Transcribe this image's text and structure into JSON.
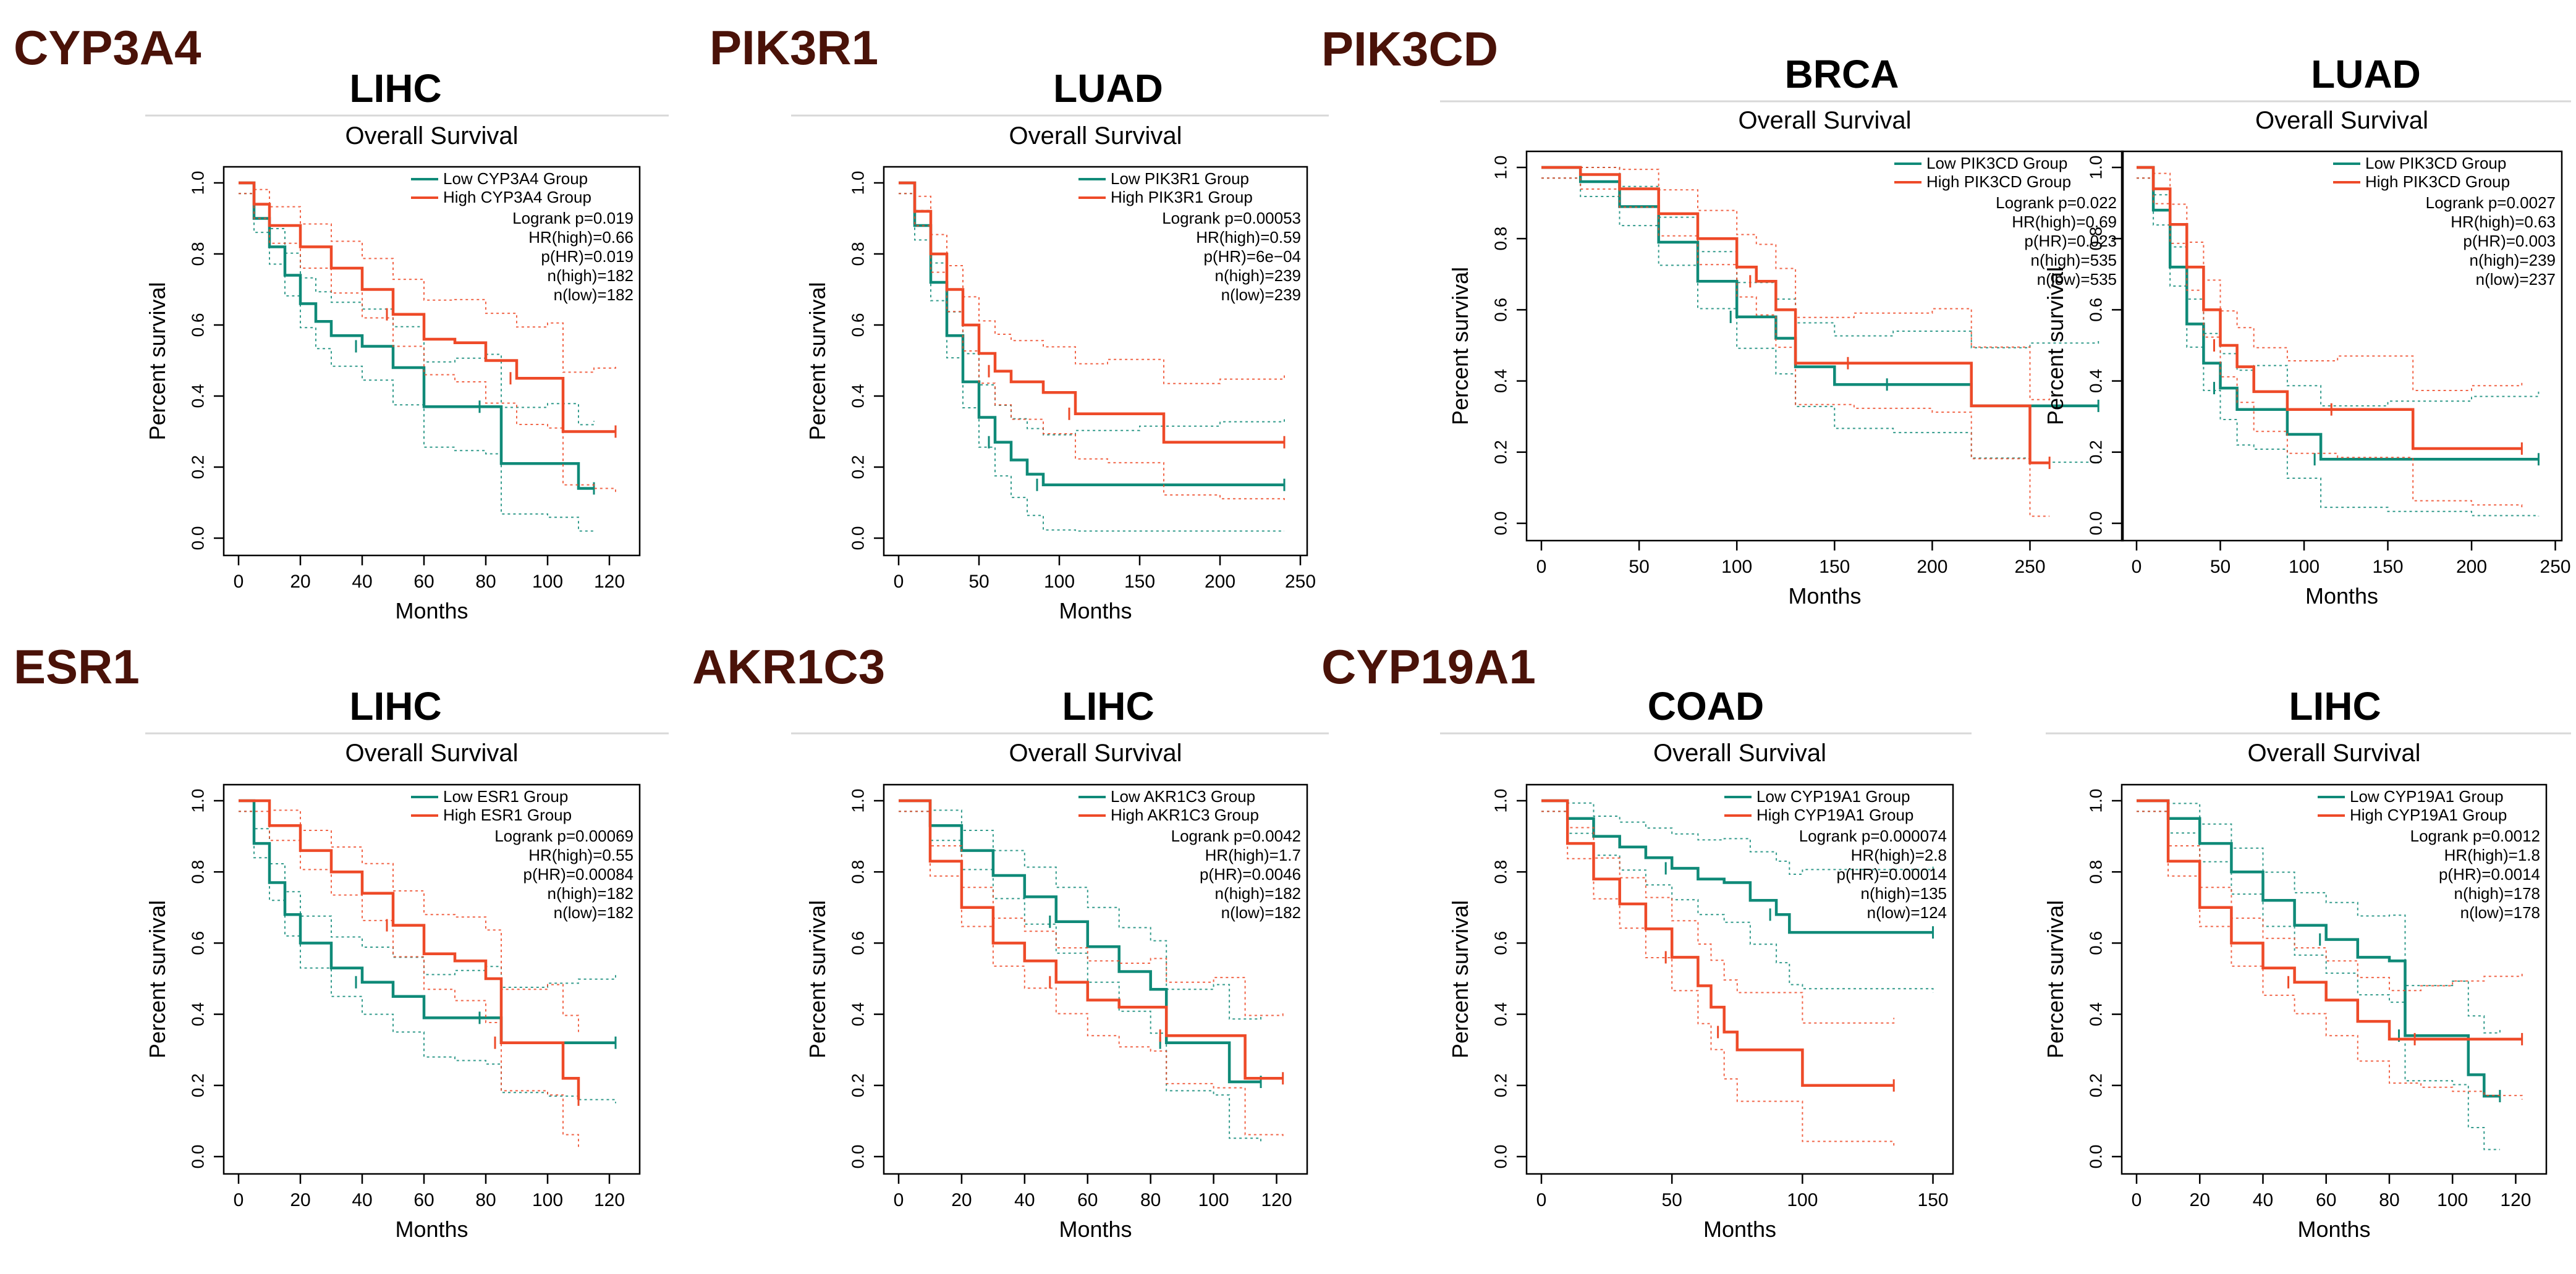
{
  "colors": {
    "low": "#0f8a78",
    "high": "#ee4a28",
    "gene_label": "#4a1208"
  },
  "gene_labels": [
    "CYP3A4",
    "PIK3R1",
    "PIK3CD",
    "ESR1",
    "AKR1C3",
    "CYP19A1"
  ],
  "chart_data": [
    {
      "type": "line",
      "gene": "CYP3A4",
      "cancer": "LIHC",
      "title": "Overall Survival",
      "xlabel": "Months",
      "ylabel": "Percent survival",
      "xlim": [
        0,
        125
      ],
      "ylim": [
        0,
        1.0
      ],
      "xticks": [
        "0",
        "20",
        "40",
        "60",
        "80",
        "100",
        "120"
      ],
      "yticks": [
        "0.0",
        "0.2",
        "0.4",
        "0.6",
        "0.8",
        "1.0"
      ],
      "legend": [
        "Low CYP3A4 Group",
        "High CYP3A4 Group"
      ],
      "stats": [
        "Logrank p=0.019",
        "HR(high)=0.66",
        "p(HR)=0.019",
        "n(high)=182",
        "n(low)=182"
      ],
      "series": [
        {
          "name": "Low CYP3A4 Group",
          "x": [
            0,
            5,
            10,
            15,
            20,
            25,
            30,
            40,
            50,
            60,
            70,
            80,
            85,
            100,
            110,
            115
          ],
          "y": [
            1,
            0.9,
            0.82,
            0.74,
            0.66,
            0.61,
            0.57,
            0.54,
            0.48,
            0.37,
            0.37,
            0.37,
            0.21,
            0.21,
            0.14,
            0.14
          ]
        },
        {
          "name": "High CYP3A4 Group",
          "x": [
            0,
            5,
            10,
            20,
            30,
            40,
            50,
            60,
            70,
            80,
            90,
            100,
            105,
            115,
            122
          ],
          "y": [
            1,
            0.94,
            0.88,
            0.82,
            0.76,
            0.7,
            0.63,
            0.56,
            0.55,
            0.5,
            0.45,
            0.45,
            0.3,
            0.3,
            0.3
          ]
        }
      ]
    },
    {
      "type": "line",
      "gene": "PIK3R1",
      "cancer": "LUAD",
      "title": "Overall Survival",
      "xlabel": "Months",
      "ylabel": "Percent survival",
      "xlim": [
        0,
        245
      ],
      "ylim": [
        0,
        1.0
      ],
      "xticks": [
        "0",
        "50",
        "100",
        "150",
        "200",
        "250"
      ],
      "yticks": [
        "0.0",
        "0.2",
        "0.4",
        "0.6",
        "0.8",
        "1.0"
      ],
      "legend": [
        "Low PIK3R1 Group",
        "High PIK3R1 Group"
      ],
      "stats": [
        "Logrank p=0.00053",
        "HR(high)=0.59",
        "p(HR)=6e−04",
        "n(high)=239",
        "n(low)=239"
      ],
      "series": [
        {
          "name": "Low PIK3R1 Group",
          "x": [
            0,
            10,
            20,
            30,
            40,
            50,
            60,
            70,
            80,
            90,
            110,
            150,
            200,
            240
          ],
          "y": [
            1,
            0.88,
            0.72,
            0.57,
            0.44,
            0.34,
            0.27,
            0.22,
            0.18,
            0.15,
            0.15,
            0.15,
            0.15,
            0.15
          ]
        },
        {
          "name": "High PIK3R1 Group",
          "x": [
            0,
            10,
            20,
            30,
            40,
            50,
            60,
            70,
            90,
            110,
            130,
            165,
            200,
            240
          ],
          "y": [
            1,
            0.92,
            0.8,
            0.7,
            0.6,
            0.52,
            0.47,
            0.44,
            0.41,
            0.35,
            0.35,
            0.27,
            0.27,
            0.27
          ]
        }
      ]
    },
    {
      "type": "line",
      "gene": "PIK3CD",
      "cancer": "BRCA",
      "title": "Overall Survival",
      "xlabel": "Months",
      "ylabel": "Percent survival",
      "xlim": [
        0,
        290
      ],
      "ylim": [
        0,
        1.0
      ],
      "xticks": [
        "0",
        "50",
        "100",
        "150",
        "200",
        "250"
      ],
      "yticks": [
        "0.0",
        "0.2",
        "0.4",
        "0.6",
        "0.8",
        "1.0"
      ],
      "legend": [
        "Low PIK3CD Group",
        "High PIK3CD Group"
      ],
      "stats": [
        "Logrank p=0.022",
        "HR(high)=0.69",
        "p(HR)=0.023",
        "n(high)=535",
        "n(low)=535"
      ],
      "series": [
        {
          "name": "Low PIK3CD Group",
          "x": [
            0,
            20,
            40,
            60,
            80,
            100,
            120,
            130,
            150,
            180,
            220,
            250,
            285
          ],
          "y": [
            1,
            0.96,
            0.89,
            0.79,
            0.68,
            0.58,
            0.52,
            0.44,
            0.39,
            0.39,
            0.33,
            0.33,
            0.33
          ]
        },
        {
          "name": "High PIK3CD Group",
          "x": [
            0,
            20,
            40,
            60,
            80,
            100,
            110,
            120,
            130,
            160,
            200,
            220,
            250,
            260
          ],
          "y": [
            1,
            0.98,
            0.94,
            0.87,
            0.8,
            0.72,
            0.68,
            0.6,
            0.45,
            0.45,
            0.45,
            0.33,
            0.17,
            0.17
          ]
        }
      ]
    },
    {
      "type": "line",
      "gene": "PIK3CD",
      "cancer": "LUAD",
      "title": "Overall Survival",
      "xlabel": "Months",
      "ylabel": "Percent survival",
      "xlim": [
        0,
        245
      ],
      "ylim": [
        0,
        1.0
      ],
      "xticks": [
        "0",
        "50",
        "100",
        "150",
        "200",
        "250"
      ],
      "yticks": [
        "0.0",
        "0.2",
        "0.4",
        "0.6",
        "0.8",
        "1.0"
      ],
      "legend": [
        "Low PIK3CD Group",
        "High PIK3CD Group"
      ],
      "stats": [
        "Logrank p=0.0027",
        "HR(high)=0.63",
        "p(HR)=0.003",
        "n(high)=239",
        "n(low)=237"
      ],
      "series": [
        {
          "name": "Low PIK3CD Group",
          "x": [
            0,
            10,
            20,
            30,
            40,
            50,
            60,
            70,
            90,
            110,
            150,
            200,
            240
          ],
          "y": [
            1,
            0.88,
            0.72,
            0.56,
            0.45,
            0.38,
            0.32,
            0.32,
            0.25,
            0.18,
            0.18,
            0.18,
            0.18
          ]
        },
        {
          "name": "High PIK3CD Group",
          "x": [
            0,
            10,
            20,
            30,
            40,
            50,
            60,
            70,
            90,
            120,
            165,
            200,
            230
          ],
          "y": [
            1,
            0.94,
            0.84,
            0.72,
            0.6,
            0.5,
            0.44,
            0.37,
            0.32,
            0.32,
            0.21,
            0.21,
            0.21
          ]
        }
      ]
    },
    {
      "type": "line",
      "gene": "ESR1",
      "cancer": "LIHC",
      "title": "Overall Survival",
      "xlabel": "Months",
      "ylabel": "Percent survival",
      "xlim": [
        0,
        125
      ],
      "ylim": [
        0,
        1.0
      ],
      "xticks": [
        "0",
        "20",
        "40",
        "60",
        "80",
        "100",
        "120"
      ],
      "yticks": [
        "0.0",
        "0.2",
        "0.4",
        "0.6",
        "0.8",
        "1.0"
      ],
      "legend": [
        "Low ESR1 Group",
        "High ESR1 Group"
      ],
      "stats": [
        "Logrank p=0.00069",
        "HR(high)=0.55",
        "p(HR)=0.00084",
        "n(high)=182",
        "n(low)=182"
      ],
      "series": [
        {
          "name": "Low ESR1 Group",
          "x": [
            0,
            5,
            10,
            15,
            20,
            30,
            40,
            50,
            60,
            70,
            80,
            85,
            100,
            110,
            122
          ],
          "y": [
            1,
            0.88,
            0.77,
            0.68,
            0.6,
            0.53,
            0.49,
            0.45,
            0.39,
            0.39,
            0.39,
            0.32,
            0.32,
            0.32,
            0.32
          ]
        },
        {
          "name": "High ESR1 Group",
          "x": [
            0,
            10,
            20,
            30,
            40,
            50,
            60,
            70,
            80,
            85,
            100,
            105,
            110
          ],
          "y": [
            1,
            0.93,
            0.86,
            0.8,
            0.74,
            0.65,
            0.57,
            0.55,
            0.5,
            0.32,
            0.32,
            0.22,
            0.16
          ]
        }
      ]
    },
    {
      "type": "line",
      "gene": "AKR1C3",
      "cancer": "LIHC",
      "title": "Overall Survival",
      "xlabel": "Months",
      "ylabel": "Percent survival",
      "xlim": [
        0,
        125
      ],
      "ylim": [
        0,
        1.0
      ],
      "xticks": [
        "0",
        "20",
        "40",
        "60",
        "80",
        "100",
        "120"
      ],
      "yticks": [
        "0.0",
        "0.2",
        "0.4",
        "0.6",
        "0.8",
        "1.0"
      ],
      "legend": [
        "Low AKR1C3 Group",
        "High AKR1C3 Group"
      ],
      "stats": [
        "Logrank p=0.0042",
        "HR(high)=1.7",
        "p(HR)=0.0046",
        "n(high)=182",
        "n(low)=182"
      ],
      "series": [
        {
          "name": "Low AKR1C3 Group",
          "x": [
            0,
            10,
            20,
            30,
            40,
            50,
            60,
            70,
            80,
            85,
            100,
            105,
            115
          ],
          "y": [
            1,
            0.93,
            0.86,
            0.79,
            0.73,
            0.66,
            0.59,
            0.52,
            0.47,
            0.32,
            0.32,
            0.21,
            0.21
          ]
        },
        {
          "name": "High AKR1C3 Group",
          "x": [
            0,
            10,
            20,
            30,
            40,
            50,
            60,
            70,
            80,
            85,
            100,
            110,
            122
          ],
          "y": [
            1,
            0.83,
            0.7,
            0.6,
            0.55,
            0.49,
            0.44,
            0.42,
            0.42,
            0.34,
            0.34,
            0.22,
            0.22
          ]
        }
      ]
    },
    {
      "type": "line",
      "gene": "CYP19A1",
      "cancer": "COAD",
      "title": "Overall Survival",
      "xlabel": "Months",
      "ylabel": "Percent survival",
      "xlim": [
        0,
        152
      ],
      "ylim": [
        0,
        1.0
      ],
      "xticks": [
        "0",
        "50",
        "100",
        "150"
      ],
      "yticks": [
        "0.0",
        "0.2",
        "0.4",
        "0.6",
        "0.8",
        "1.0"
      ],
      "legend": [
        "Low CYP19A1 Group",
        "High CYP19A1 Group"
      ],
      "stats": [
        "Logrank p=0.000074",
        "HR(high)=2.8",
        "p(HR)=0.00014",
        "n(high)=135",
        "n(low)=124"
      ],
      "series": [
        {
          "name": "Low CYP19A1 Group",
          "x": [
            0,
            10,
            20,
            30,
            40,
            50,
            60,
            70,
            80,
            90,
            95,
            100,
            150
          ],
          "y": [
            1,
            0.95,
            0.9,
            0.87,
            0.84,
            0.81,
            0.78,
            0.77,
            0.72,
            0.68,
            0.63,
            0.63,
            0.63
          ]
        },
        {
          "name": "High CYP19A1 Group",
          "x": [
            0,
            10,
            20,
            30,
            40,
            50,
            60,
            65,
            70,
            75,
            100,
            135
          ],
          "y": [
            1,
            0.88,
            0.78,
            0.71,
            0.64,
            0.56,
            0.48,
            0.42,
            0.35,
            0.3,
            0.2,
            0.2
          ]
        }
      ]
    },
    {
      "type": "line",
      "gene": "CYP19A1",
      "cancer": "LIHC",
      "title": "Overall Survival",
      "xlabel": "Months",
      "ylabel": "Percent survival",
      "xlim": [
        0,
        125
      ],
      "ylim": [
        0,
        1.0
      ],
      "xticks": [
        "0",
        "20",
        "40",
        "60",
        "80",
        "100",
        "120"
      ],
      "yticks": [
        "0.0",
        "0.2",
        "0.4",
        "0.6",
        "0.8",
        "1.0"
      ],
      "legend": [
        "Low CYP19A1 Group",
        "High CYP19A1 Group"
      ],
      "stats": [
        "Logrank p=0.0012",
        "HR(high)=1.8",
        "p(HR)=0.0014",
        "n(high)=178",
        "n(low)=178"
      ],
      "series": [
        {
          "name": "Low CYP19A1 Group",
          "x": [
            0,
            10,
            20,
            30,
            40,
            50,
            60,
            70,
            80,
            85,
            100,
            105,
            110,
            115
          ],
          "y": [
            1,
            0.95,
            0.88,
            0.8,
            0.72,
            0.65,
            0.61,
            0.56,
            0.55,
            0.34,
            0.34,
            0.23,
            0.17,
            0.17
          ]
        },
        {
          "name": "High CYP19A1 Group",
          "x": [
            0,
            10,
            20,
            30,
            40,
            50,
            60,
            70,
            80,
            90,
            100,
            110,
            122
          ],
          "y": [
            1,
            0.83,
            0.7,
            0.6,
            0.53,
            0.49,
            0.44,
            0.38,
            0.33,
            0.33,
            0.33,
            0.33,
            0.33
          ]
        }
      ]
    }
  ]
}
